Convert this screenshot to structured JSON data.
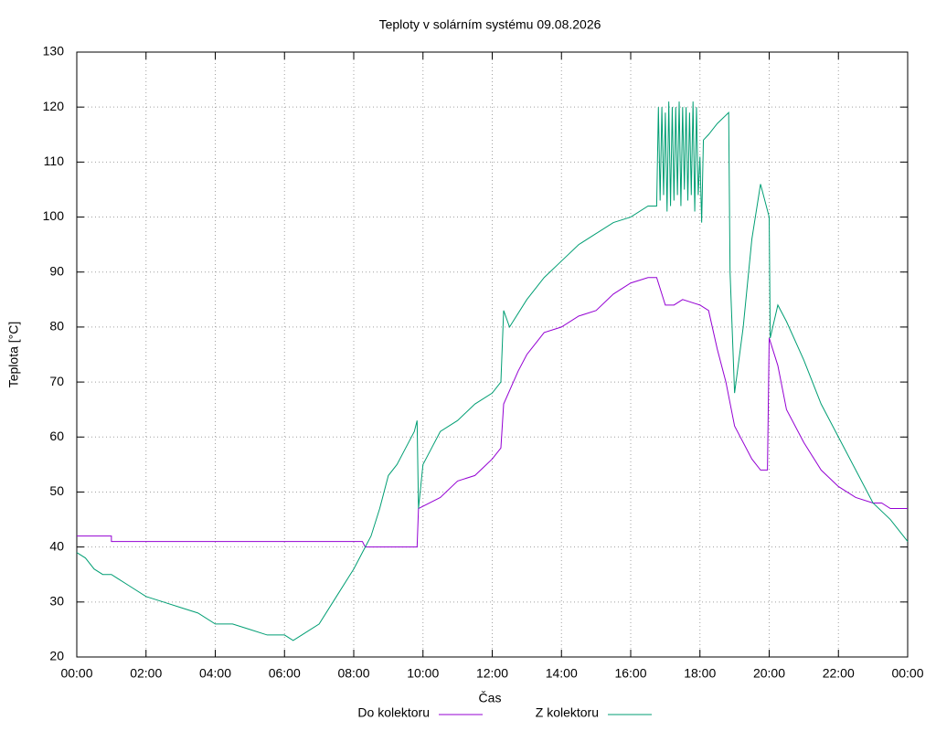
{
  "chart_data": {
    "type": "line",
    "title": "Teploty v solárním systému 09.08.2026",
    "x_label": "Čas",
    "y_label": "Teplota [°C]",
    "xlim": [
      0,
      24
    ],
    "xticks": [
      {
        "value": 0,
        "label": "00:00"
      },
      {
        "value": 2,
        "label": "02:00"
      },
      {
        "value": 4,
        "label": "04:00"
      },
      {
        "value": 6,
        "label": "06:00"
      },
      {
        "value": 8,
        "label": "08:00"
      },
      {
        "value": 10,
        "label": "10:00"
      },
      {
        "value": 12,
        "label": "12:00"
      },
      {
        "value": 14,
        "label": "14:00"
      },
      {
        "value": 16,
        "label": "16:00"
      },
      {
        "value": 18,
        "label": "18:00"
      },
      {
        "value": 20,
        "label": "20:00"
      },
      {
        "value": 22,
        "label": "22:00"
      },
      {
        "value": 24,
        "label": "00:00"
      }
    ],
    "ylim": [
      20,
      130
    ],
    "yticks": [
      20,
      30,
      40,
      50,
      60,
      70,
      80,
      90,
      100,
      110,
      120,
      130
    ],
    "grid": true,
    "legend": "bottom",
    "series": [
      {
        "name": "Do kolektoru",
        "color": "#9400d3",
        "x": [
          0,
          1,
          1,
          8.25,
          8.33,
          9.83,
          9.87,
          10.5,
          11,
          11.5,
          12,
          12.25,
          12.33,
          12.75,
          13,
          13.5,
          14,
          14.5,
          15,
          15.5,
          16,
          16.5,
          16.75,
          17,
          17.25,
          17.5,
          18,
          18.25,
          18.5,
          18.75,
          19,
          19.5,
          19.75,
          19.95,
          20,
          20.25,
          20.5,
          21,
          21.5,
          22,
          22.5,
          23,
          23.25,
          23.5,
          24
        ],
        "values": [
          42,
          42,
          41,
          41,
          40,
          40,
          47,
          49,
          52,
          53,
          56,
          58,
          66,
          72,
          75,
          79,
          80,
          82,
          83,
          86,
          88,
          89,
          89,
          84,
          84,
          85,
          84,
          83,
          76,
          70,
          62,
          56,
          54,
          54,
          78,
          73,
          65,
          59,
          54,
          51,
          49,
          48,
          48,
          47,
          47
        ]
      },
      {
        "name": "Z kolektoru",
        "color": "#009e73",
        "x": [
          0,
          0.25,
          0.5,
          0.75,
          1,
          1.5,
          2,
          2.5,
          3,
          3.5,
          4,
          4.5,
          5,
          5.5,
          6,
          6.25,
          6.5,
          7,
          7.5,
          8,
          8.25,
          8.5,
          8.75,
          9,
          9.25,
          9.5,
          9.75,
          9.83,
          9.87,
          10,
          10.25,
          10.5,
          11,
          11.5,
          12,
          12.25,
          12.33,
          12.5,
          13,
          13.5,
          14,
          14.5,
          15,
          15.5,
          16,
          16.5,
          16.75,
          16.8,
          16.85,
          16.9,
          16.95,
          17,
          17.05,
          17.1,
          17.15,
          17.2,
          17.25,
          17.3,
          17.35,
          17.4,
          17.45,
          17.5,
          17.55,
          17.6,
          17.65,
          17.7,
          17.75,
          17.8,
          17.85,
          17.9,
          17.95,
          18,
          18.05,
          18.1,
          18.25,
          18.5,
          18.83,
          18.87,
          19,
          19.25,
          19.5,
          19.75,
          20,
          20.03,
          20.25,
          20.5,
          21,
          21.5,
          22,
          22.5,
          23,
          23.5,
          24
        ],
        "values": [
          39,
          38,
          36,
          35,
          35,
          33,
          31,
          30,
          29,
          28,
          26,
          26,
          25,
          24,
          24,
          23,
          24,
          26,
          31,
          36,
          39,
          42,
          47,
          53,
          55,
          58,
          61,
          63,
          47,
          55,
          58,
          61,
          63,
          66,
          68,
          70,
          83,
          80,
          85,
          89,
          92,
          95,
          97,
          99,
          100,
          102,
          102,
          120,
          103,
          120,
          104,
          119,
          101,
          121,
          102,
          120,
          103,
          120,
          104,
          121,
          102,
          120,
          105,
          120,
          103,
          119,
          104,
          121,
          101,
          120,
          104,
          111,
          99,
          114,
          115,
          117,
          119,
          90,
          68,
          80,
          96,
          106,
          100,
          78,
          84,
          81,
          74,
          66,
          60,
          54,
          48,
          45,
          41
        ]
      }
    ]
  }
}
